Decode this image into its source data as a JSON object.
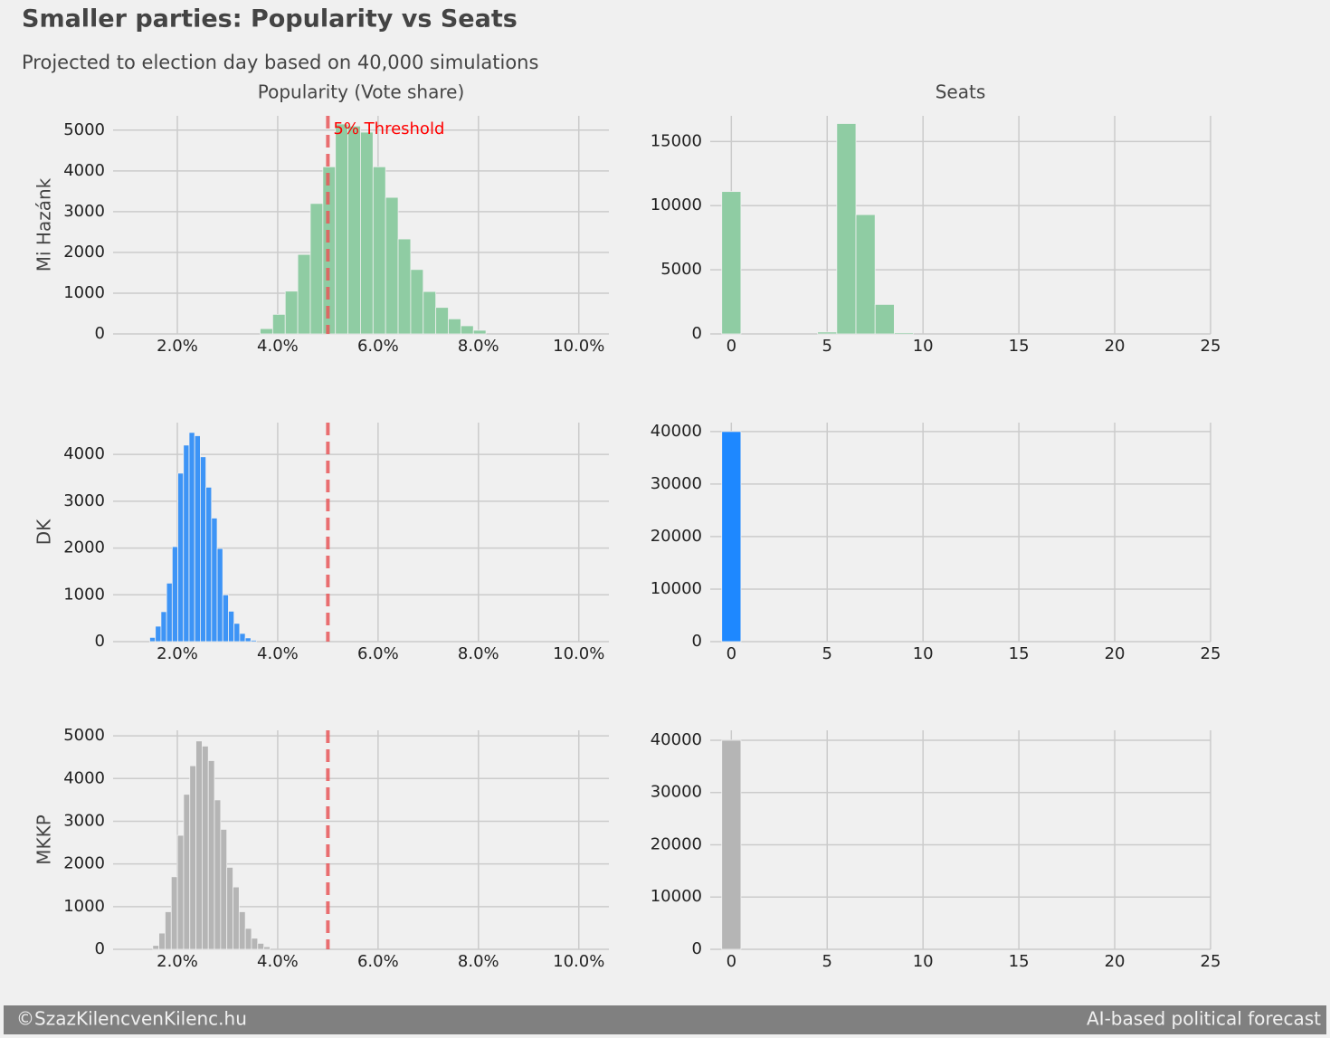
{
  "title": "Smaller parties: Popularity vs Seats",
  "subtitle": "Projected to election day based on 40,000 simulations",
  "footer": {
    "left": "©SzazKilencvenKilenc.hu",
    "right": "AI-based political forecast"
  },
  "chart_data": [
    {
      "type": "histogram",
      "title": "Popularity (Vote share)",
      "ylabel": "Mi Hazánk",
      "color": "#8fcca3",
      "grid": true,
      "bins": [
        3.65,
        3.9,
        4.15,
        4.4,
        4.65,
        4.9,
        5.15,
        5.4,
        5.65,
        5.9,
        6.15,
        6.4,
        6.65,
        6.9,
        7.15,
        7.4,
        7.65,
        7.9,
        8.15
      ],
      "values": [
        130,
        480,
        1050,
        1950,
        3200,
        4100,
        5150,
        5100,
        4950,
        4100,
        3350,
        2330,
        1580,
        1040,
        650,
        370,
        200,
        90
      ],
      "xlim": [
        0.72,
        10.6
      ],
      "xticks": [
        {
          "value": 2,
          "label": "2.0%"
        },
        {
          "value": 4,
          "label": "4.0%"
        },
        {
          "value": 6,
          "label": "6.0%"
        },
        {
          "value": 8,
          "label": "8.0%"
        },
        {
          "value": 10,
          "label": "10.0%"
        }
      ],
      "ylim": [
        0,
        5350
      ],
      "yticks": [
        0,
        1000,
        2000,
        3000,
        4000,
        5000
      ],
      "threshold": {
        "value": 5,
        "label": "5% Threshold",
        "color": "#e8585a"
      }
    },
    {
      "type": "histogram",
      "title": "Seats",
      "color": "#8fcca3",
      "grid": true,
      "bins": [
        -0.5,
        0.5,
        1.5,
        2.5,
        3.5,
        4.5,
        5.5,
        6.5,
        7.5,
        8.5,
        9.5
      ],
      "values": [
        11100,
        0,
        0,
        0,
        0,
        150,
        16400,
        9300,
        2300,
        100
      ],
      "xlim": [
        -1.1,
        25
      ],
      "xticks": [
        0,
        5,
        10,
        15,
        20,
        25
      ],
      "ylim": [
        0,
        17000
      ],
      "yticks": [
        0,
        5000,
        10000,
        15000
      ]
    },
    {
      "type": "histogram",
      "ylabel": "DK",
      "color": "#3d94f6",
      "grid": true,
      "bins": [
        1.45,
        1.562,
        1.674,
        1.786,
        1.898,
        2.01,
        2.122,
        2.234,
        2.346,
        2.458,
        2.57,
        2.682,
        2.794,
        2.906,
        3.018,
        3.13,
        3.242,
        3.354,
        3.466,
        3.578
      ],
      "values": [
        90,
        330,
        640,
        1250,
        2030,
        3600,
        4200,
        4470,
        4400,
        3950,
        3300,
        2640,
        1990,
        1000,
        650,
        390,
        175,
        80,
        30
      ],
      "xlim": [
        0.72,
        10.6
      ],
      "xticks": [
        {
          "value": 2,
          "label": "2.0%"
        },
        {
          "value": 4,
          "label": "4.0%"
        },
        {
          "value": 6,
          "label": "6.0%"
        },
        {
          "value": 8,
          "label": "8.0%"
        },
        {
          "value": 10,
          "label": "10.0%"
        }
      ],
      "ylim": [
        0,
        4680
      ],
      "yticks": [
        0,
        1000,
        2000,
        3000,
        4000
      ],
      "threshold": {
        "value": 5,
        "color": "#e8585a"
      }
    },
    {
      "type": "histogram",
      "color": "#1e88ff",
      "grid": true,
      "bins": [
        -0.5,
        0.5
      ],
      "values": [
        40000
      ],
      "xlim": [
        -1.1,
        25
      ],
      "xticks": [
        0,
        5,
        10,
        15,
        20,
        25
      ],
      "ylim": [
        0,
        41700
      ],
      "yticks": [
        0,
        10000,
        20000,
        30000,
        40000
      ]
    },
    {
      "type": "histogram",
      "ylabel": "MKKP",
      "color": "#b5b5b5",
      "grid": true,
      "bins": [
        1.51,
        1.633,
        1.756,
        1.879,
        2.002,
        2.125,
        2.248,
        2.371,
        2.494,
        2.617,
        2.74,
        2.863,
        2.986,
        3.109,
        3.232,
        3.355,
        3.478,
        3.601,
        3.724,
        3.847
      ],
      "values": [
        90,
        380,
        880,
        1700,
        2670,
        3630,
        4300,
        4880,
        4760,
        4420,
        3500,
        2810,
        1920,
        1460,
        880,
        490,
        260,
        140,
        60
      ],
      "xlim": [
        0.72,
        10.6
      ],
      "xticks": [
        {
          "value": 2,
          "label": "2.0%"
        },
        {
          "value": 4,
          "label": "4.0%"
        },
        {
          "value": 6,
          "label": "6.0%"
        },
        {
          "value": 8,
          "label": "8.0%"
        },
        {
          "value": 10,
          "label": "10.0%"
        }
      ],
      "ylim": [
        0,
        5130
      ],
      "yticks": [
        0,
        1000,
        2000,
        3000,
        4000,
        5000
      ],
      "threshold": {
        "value": 5,
        "color": "#e8585a"
      }
    },
    {
      "type": "histogram",
      "color": "#b5b5b5",
      "grid": true,
      "bins": [
        -0.5,
        0.5
      ],
      "values": [
        40000
      ],
      "xlim": [
        -1.1,
        25
      ],
      "xticks": [
        0,
        5,
        10,
        15,
        20,
        25
      ],
      "ylim": [
        0,
        41900
      ],
      "yticks": [
        0,
        10000,
        20000,
        30000,
        40000
      ]
    }
  ]
}
